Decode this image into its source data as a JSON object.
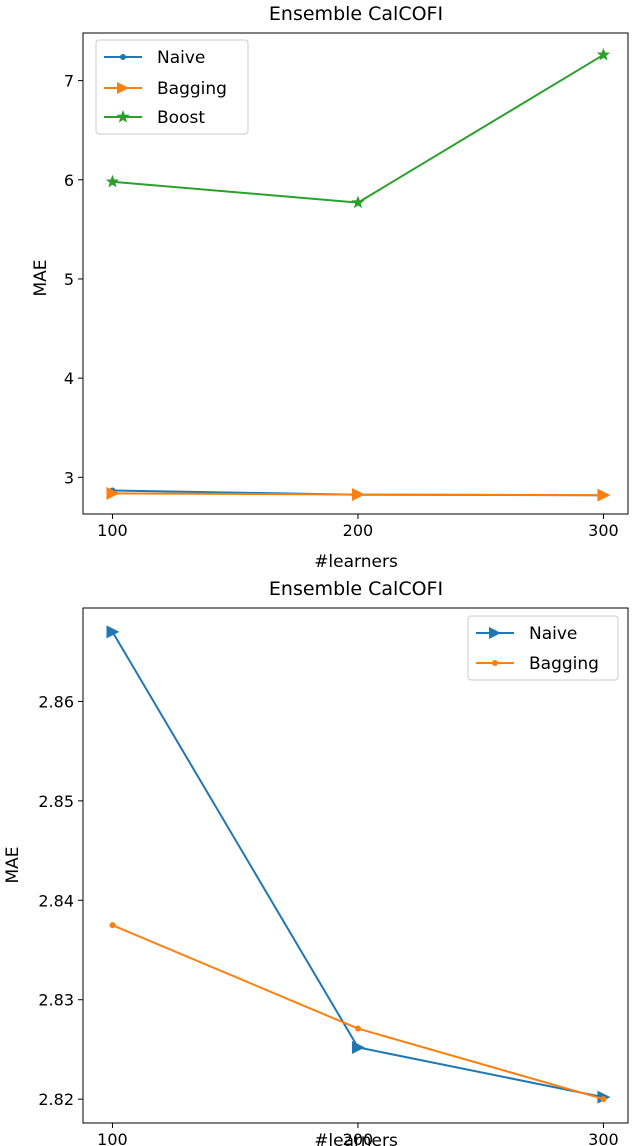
{
  "chart_data": [
    {
      "type": "line",
      "title": "Ensemble CalCOFI",
      "xlabel": "#learners",
      "ylabel": "MAE",
      "x": [
        100,
        200,
        300
      ],
      "xticks": [
        "100",
        "200",
        "300"
      ],
      "yticks": [
        "3",
        "4",
        "5",
        "6",
        "7"
      ],
      "xlim": [
        88,
        310
      ],
      "ylim": [
        2.63,
        7.48
      ],
      "legend_position": "upper left",
      "grid": false,
      "series": [
        {
          "name": "Naive",
          "values": [
            2.867,
            2.825,
            2.82
          ],
          "color": "#1f77b4",
          "marker": "point"
        },
        {
          "name": "Bagging",
          "values": [
            2.8375,
            2.827,
            2.82
          ],
          "color": "#ff7f0e",
          "marker": "triangle-right"
        },
        {
          "name": "Boost",
          "values": [
            5.98,
            5.77,
            7.26
          ],
          "color": "#2ca02c",
          "marker": "star"
        }
      ]
    },
    {
      "type": "line",
      "title": "Ensemble CalCOFI",
      "xlabel": "#learners",
      "ylabel": "MAE",
      "x": [
        100,
        200,
        300
      ],
      "xticks": [
        "100",
        "200",
        "300"
      ],
      "yticks": [
        "2.82",
        "2.83",
        "2.84",
        "2.85",
        "2.86"
      ],
      "xlim": [
        88,
        310
      ],
      "ylim": [
        2.8176,
        2.8694
      ],
      "legend_position": "upper right",
      "grid": false,
      "series": [
        {
          "name": "Naive",
          "values": [
            2.867,
            2.8252,
            2.8202
          ],
          "color": "#1f77b4",
          "marker": "triangle-right"
        },
        {
          "name": "Bagging",
          "values": [
            2.8375,
            2.8271,
            2.82
          ],
          "color": "#ff7f0e",
          "marker": "point"
        }
      ]
    }
  ]
}
